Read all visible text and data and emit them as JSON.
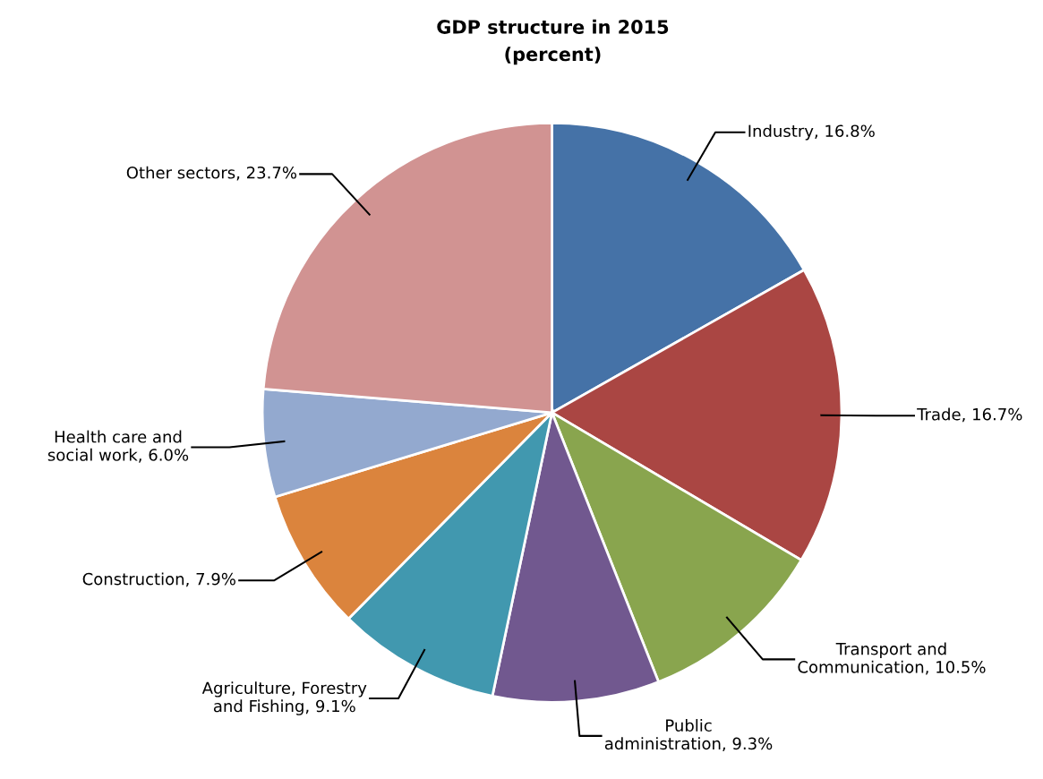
{
  "chart_data": {
    "type": "pie",
    "title": "GDP structure in 2015",
    "subtitle": "(percent)",
    "categories": [
      "Industry",
      "Trade",
      "Transport and Communication",
      "Public administration",
      "Agriculture, Forestry and Fishing",
      "Construction",
      "Health care and social work",
      "Other sectors"
    ],
    "values": [
      16.8,
      16.7,
      10.5,
      9.3,
      9.1,
      7.9,
      6.0,
      23.7
    ],
    "value_labels": [
      "16.8%",
      "16.7%",
      "10.5%",
      "9.3%",
      "9.1%",
      "7.9%",
      "6.0%",
      "23.7%"
    ],
    "colors": [
      "#4572a7",
      "#aa4643",
      "#89a54e",
      "#71588f",
      "#4198af",
      "#db843d",
      "#93a9cf",
      "#d19392"
    ],
    "legend": false
  }
}
